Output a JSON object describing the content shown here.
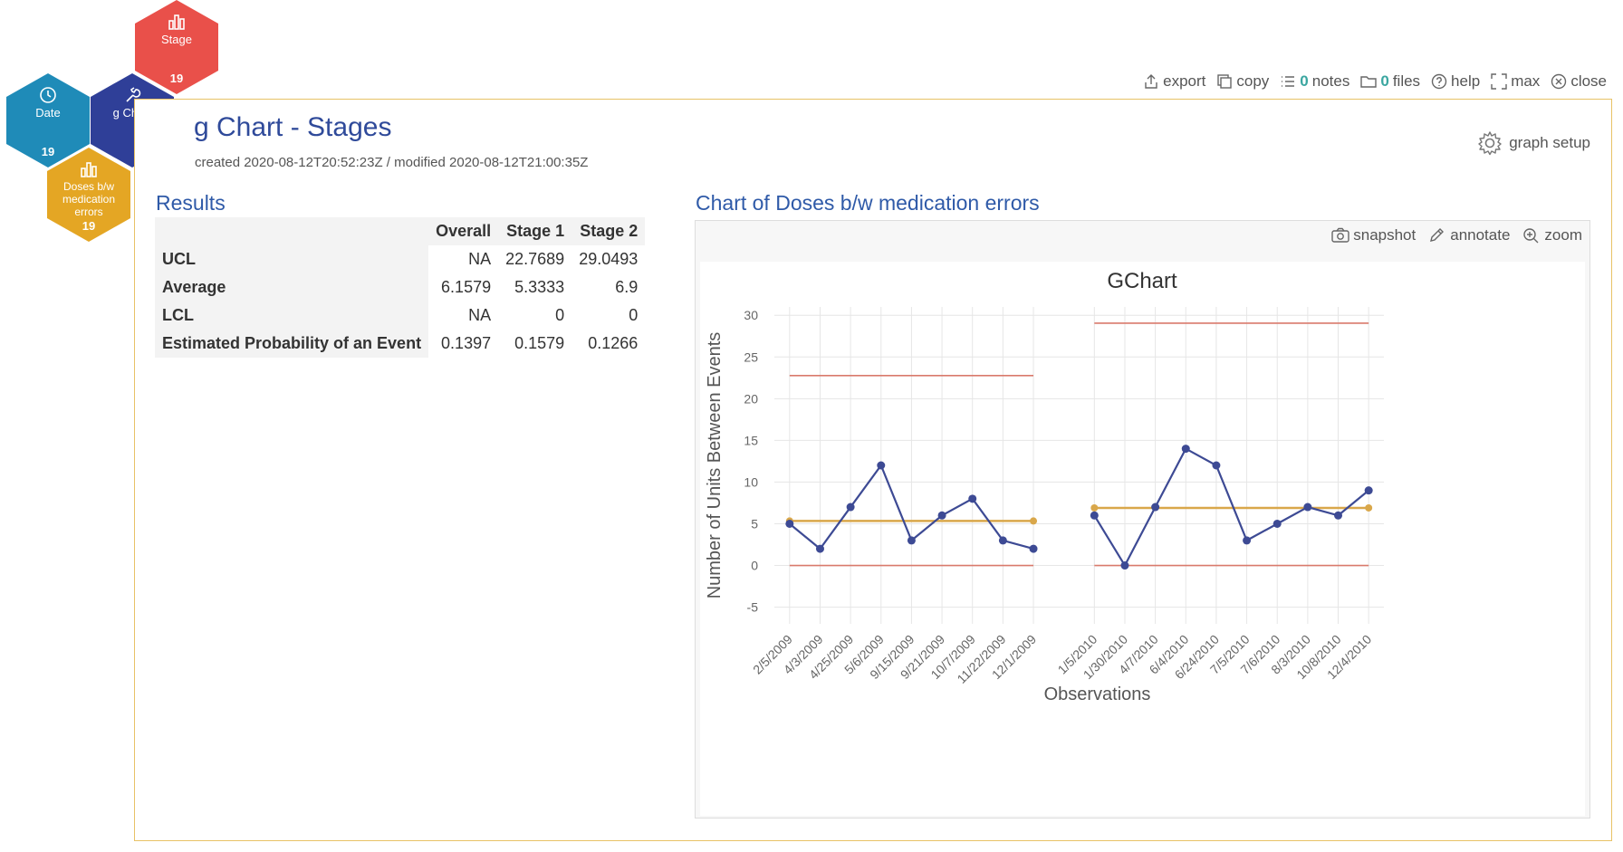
{
  "hexes": {
    "stage": {
      "label": "Stage",
      "count": "19"
    },
    "date": {
      "label": "Date",
      "count": "19"
    },
    "gchart": {
      "label": "g Chart"
    },
    "doses": {
      "label1": "Doses b/w",
      "label2": "medication",
      "label3": "errors",
      "count": "19"
    }
  },
  "toolbar": {
    "export": "export",
    "copy": "copy",
    "notes_count": "0",
    "notes": "notes",
    "files_count": "0",
    "files": "files",
    "help": "help",
    "max": "max",
    "close": "close"
  },
  "page": {
    "title": "g Chart - Stages",
    "meta": "created 2020-08-12T20:52:23Z / modified 2020-08-12T21:00:35Z",
    "graph_setup": "graph setup"
  },
  "results": {
    "title": "Results",
    "headers": [
      "Overall",
      "Stage 1",
      "Stage 2"
    ],
    "rows": [
      {
        "label": "UCL",
        "values": [
          "NA",
          "22.7689",
          "29.0493"
        ]
      },
      {
        "label": "Average",
        "values": [
          "6.1579",
          "5.3333",
          "6.9"
        ]
      },
      {
        "label": "LCL",
        "values": [
          "NA",
          "0",
          "0"
        ]
      },
      {
        "label": "Estimated Probability of an Event",
        "values": [
          "0.1397",
          "0.1579",
          "0.1266"
        ]
      }
    ]
  },
  "chart_section": {
    "title": "Chart of Doses b/w medication errors",
    "snapshot": "snapshot",
    "annotate": "annotate",
    "zoom": "zoom"
  },
  "colors": {
    "series": "#3d4a94",
    "average": "#d9a74a",
    "limits": "#d97a6c",
    "hex_stage": "#e9504a",
    "hex_date": "#1f8bb8",
    "hex_gchart": "#2f3f98",
    "hex_doses": "#e4a624"
  },
  "chart_data": {
    "type": "line",
    "title": "GChart",
    "xlabel": "Observations",
    "ylabel": "Number of Units Between Events",
    "ylim": [
      -7,
      31
    ],
    "yticks": [
      -5,
      0,
      5,
      10,
      15,
      20,
      25,
      30
    ],
    "stages": [
      {
        "name": "Stage 1",
        "x": [
          "2/5/2009",
          "4/3/2009",
          "4/25/2009",
          "5/6/2009",
          "9/15/2009",
          "9/21/2009",
          "10/7/2009",
          "11/22/2009",
          "12/1/2009"
        ],
        "values": [
          5,
          2,
          7,
          12,
          3,
          6,
          8,
          3,
          2
        ],
        "ucl": 22.7689,
        "average": 5.3333,
        "lcl": 0
      },
      {
        "name": "Stage 2",
        "x": [
          "1/5/2010",
          "1/30/2010",
          "4/7/2010",
          "6/4/2010",
          "6/24/2010",
          "7/5/2010",
          "7/6/2010",
          "8/3/2010",
          "10/8/2010",
          "12/4/2010"
        ],
        "values": [
          6,
          0,
          7,
          14,
          12,
          3,
          5,
          7,
          6,
          9
        ],
        "ucl": 29.0493,
        "average": 6.9,
        "lcl": 0
      }
    ]
  }
}
